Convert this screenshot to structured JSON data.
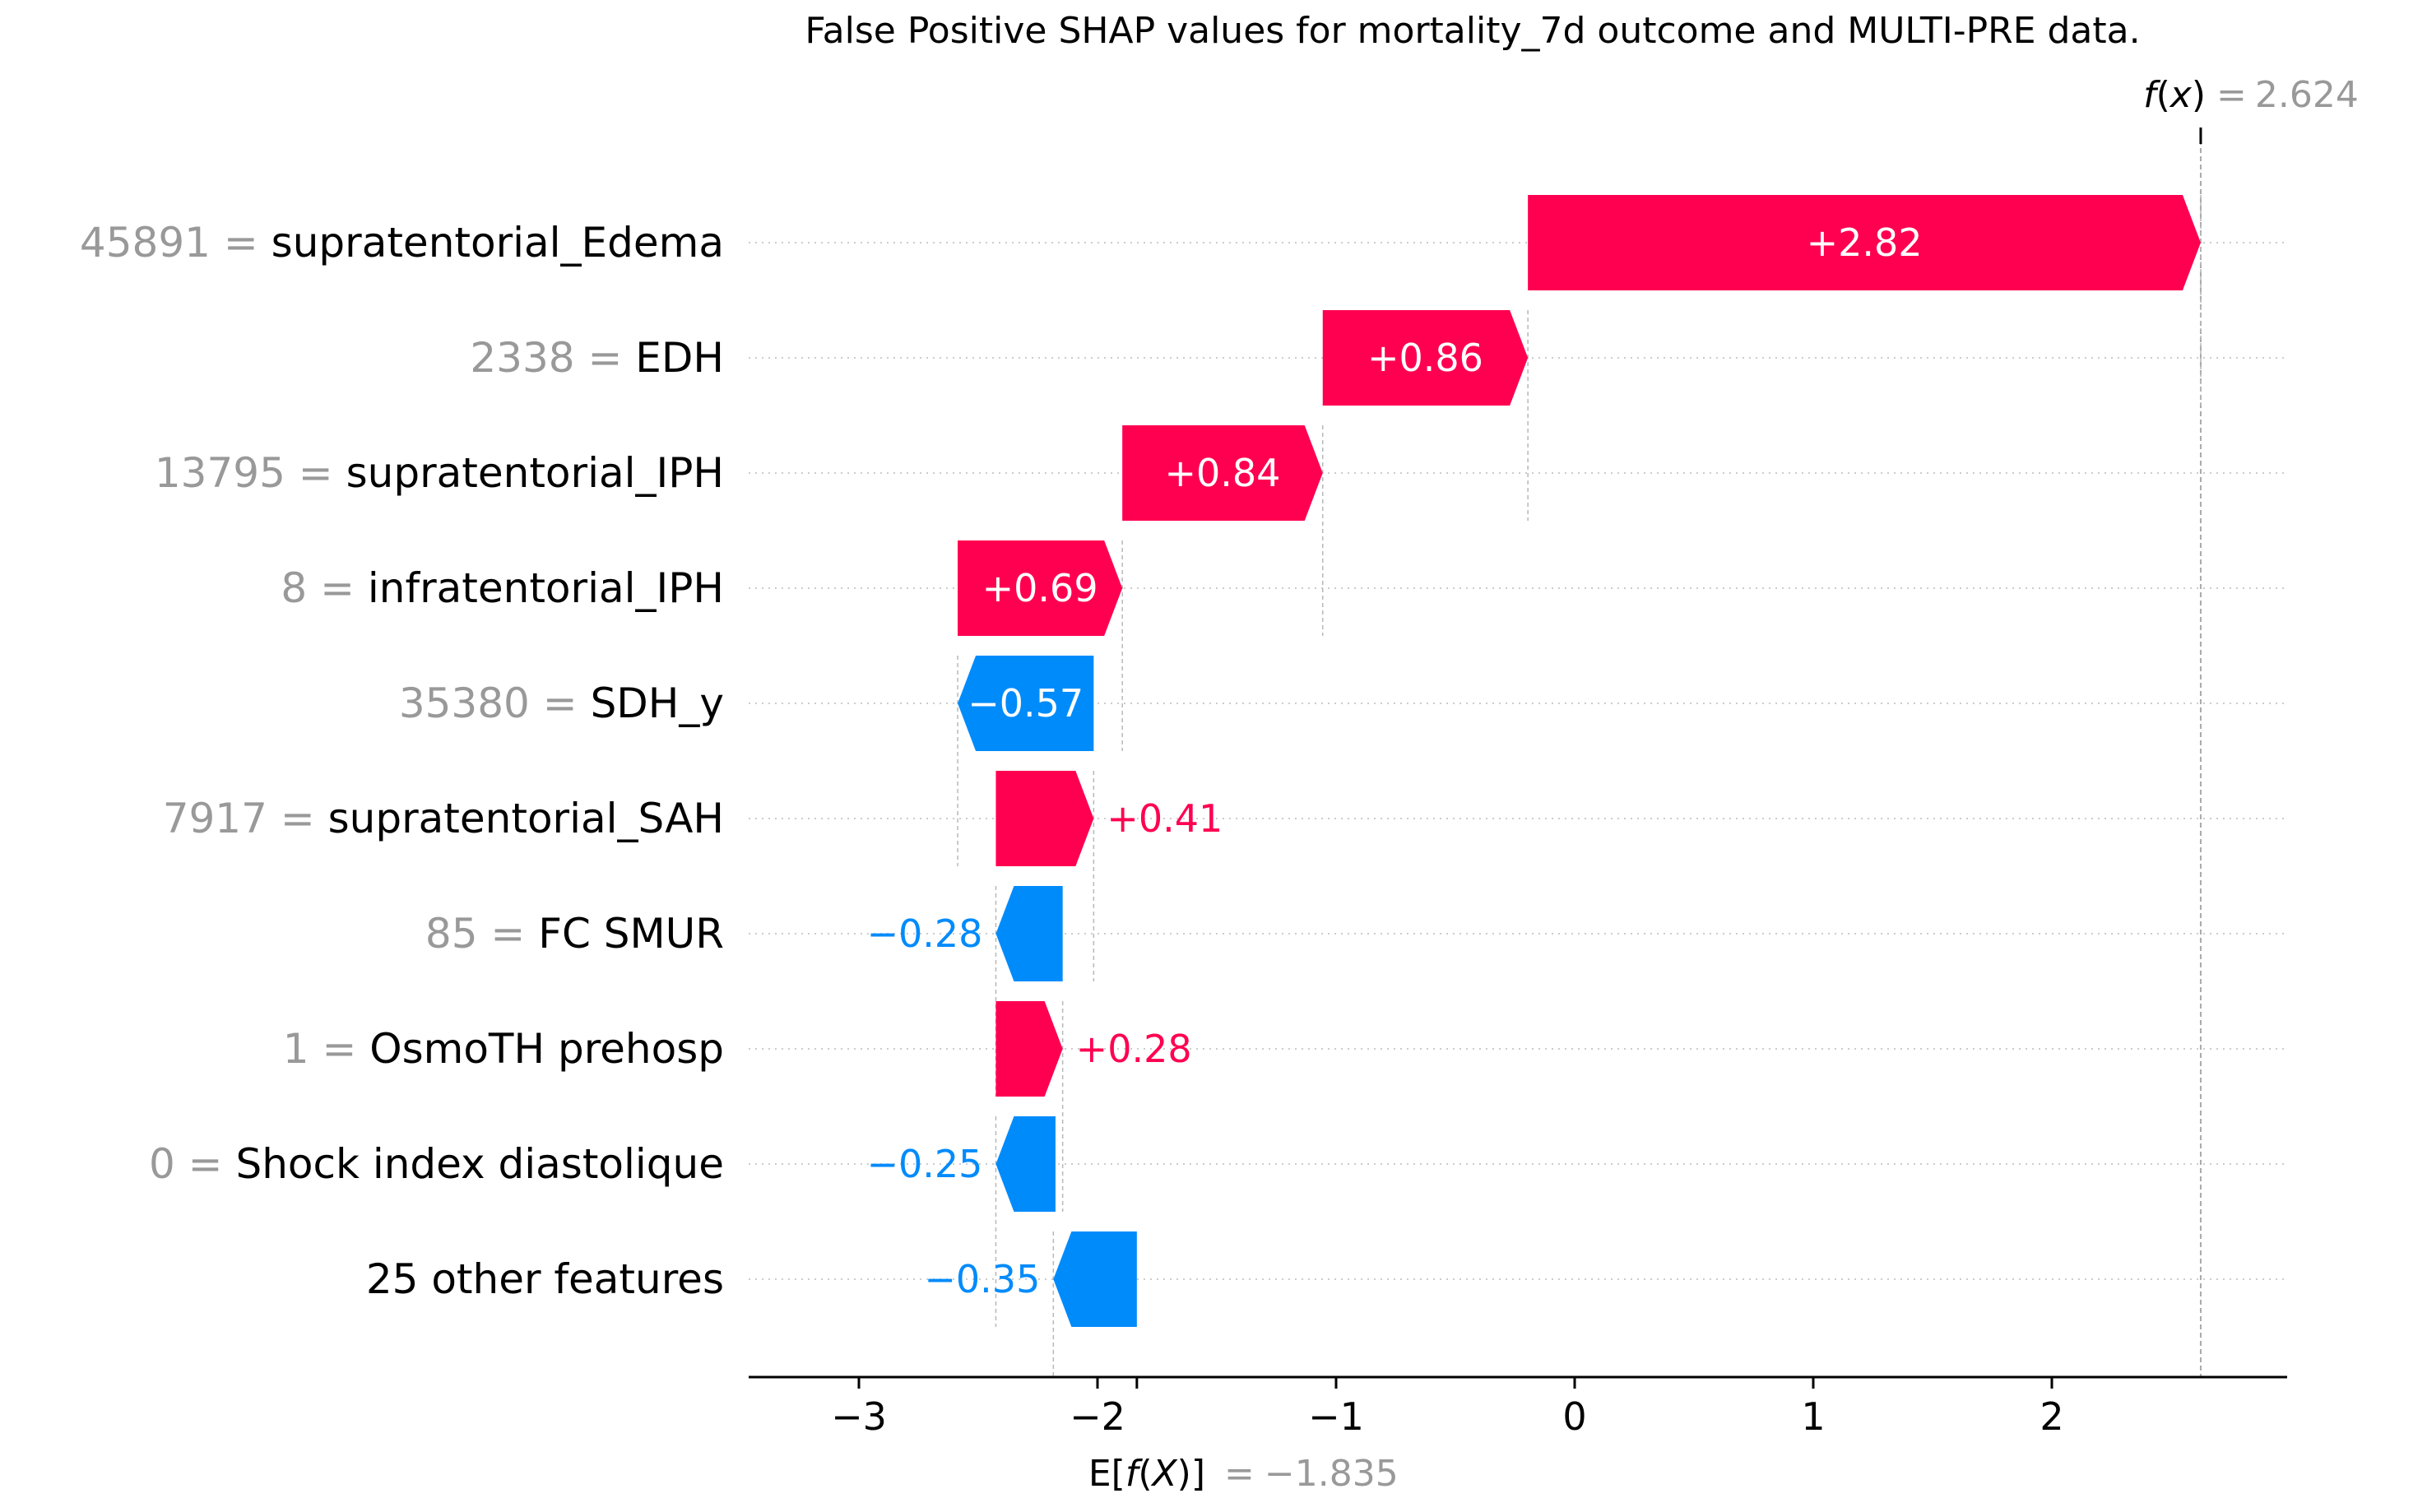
{
  "chart_data": {
    "type": "waterfall",
    "title": "False Positive SHAP values for mortality_7d outcome and MULTI-PRE data.",
    "fx": {
      "label_fn": "f",
      "label_var": "x",
      "equals": "=",
      "value": 2.624,
      "value_text": "2.624"
    },
    "efx": {
      "label_pre": "E[",
      "label_fn": "f",
      "label_open": "(",
      "label_var": "X",
      "label_close": ")]",
      "equals": "=",
      "value": -1.835,
      "value_text": "−1.835"
    },
    "xlim": [
      -3.45,
      2.95
    ],
    "xticks": [
      -3,
      -2,
      -1,
      0,
      1,
      2
    ],
    "xtick_labels": [
      "−3",
      "−2",
      "−1",
      "0",
      "1",
      "2"
    ],
    "features": [
      {
        "value_label": "45891",
        "equals": "=",
        "name": "supratentorial_Edema",
        "shap": 2.82,
        "shap_label": "+2.82",
        "start": -0.196
      },
      {
        "value_label": "2338",
        "equals": "=",
        "name": "EDH",
        "shap": 0.86,
        "shap_label": "+0.86",
        "start": -1.056
      },
      {
        "value_label": "13795",
        "equals": "=",
        "name": "supratentorial_IPH",
        "shap": 0.84,
        "shap_label": "+0.84",
        "start": -1.896
      },
      {
        "value_label": "8",
        "equals": "=",
        "name": "infratentorial_IPH",
        "shap": 0.69,
        "shap_label": "+0.69",
        "start": -2.586
      },
      {
        "value_label": "35380",
        "equals": "=",
        "name": "SDH_y",
        "shap": -0.57,
        "shap_label": "−0.57",
        "start": -2.016
      },
      {
        "value_label": "7917",
        "equals": "=",
        "name": "supratentorial_SAH",
        "shap": 0.41,
        "shap_label": "+0.41",
        "start": -2.426
      },
      {
        "value_label": "85",
        "equals": "=",
        "name": "FC SMUR ",
        "shap": -0.28,
        "shap_label": "−0.28",
        "start": -2.146
      },
      {
        "value_label": "1",
        "equals": "=",
        "name": "OsmoTH prehosp",
        "shap": 0.28,
        "shap_label": "+0.28",
        "start": -2.426
      },
      {
        "value_label": "0",
        "equals": "=",
        "name": "Shock index diastolique",
        "shap": -0.25,
        "shap_label": "−0.25",
        "start": -2.176
      },
      {
        "value_label": "",
        "equals": "",
        "name": "25 other features",
        "shap": -0.35,
        "shap_label": "−0.35",
        "start": -1.835
      }
    ],
    "colors": {
      "positive": "#ff0051",
      "negative": "#008bfb",
      "value_grey": "#999999",
      "text": "#000000",
      "grid": "#cccccc"
    }
  }
}
